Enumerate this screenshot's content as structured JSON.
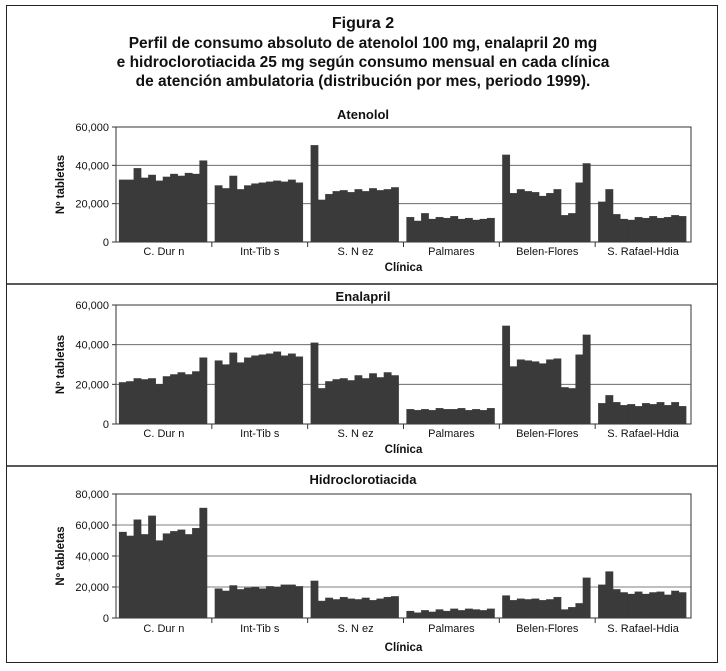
{
  "figure": {
    "label": "Figura 2",
    "title_lines": [
      "Perfil de consumo absoluto de atenolol 100 mg, enalapril 20 mg",
      "e hidroclorotiacida 25 mg según consumo mensual en cada clínica",
      "de atención ambulatoria (distribución por mes, periodo 1999)."
    ]
  },
  "chart_data": [
    {
      "type": "bar",
      "title": "Atenolol",
      "xlabel": "Clínica",
      "ylabel": "Nº tabletas",
      "ylim": [
        0,
        60000
      ],
      "yticks": [
        "0",
        "20,000",
        "40,000",
        "60,000"
      ],
      "grid": true,
      "bar_color": "#3a3a3a",
      "categories": [
        "C. Dur n",
        "Int-Tib s",
        "S. N ez",
        "Palmares",
        "Belen-Flores",
        "S. Rafael-Hdia"
      ],
      "monthly_values": [
        [
          32500,
          32500,
          38500,
          33500,
          35000,
          32000,
          34000,
          35500,
          34500,
          36000,
          35500,
          42500
        ],
        [
          29500,
          28000,
          34500,
          27500,
          29500,
          30500,
          31000,
          31500,
          32000,
          31500,
          32500,
          31000
        ],
        [
          50500,
          22000,
          25000,
          26500,
          27000,
          26000,
          27500,
          26500,
          28000,
          27000,
          27500,
          28500
        ],
        [
          13000,
          11000,
          15000,
          12000,
          13000,
          12500,
          13500,
          12000,
          12500,
          11500,
          12000,
          12500
        ],
        [
          45500,
          25500,
          27500,
          26500,
          26000,
          24000,
          25500,
          27500,
          14000,
          15000,
          31000,
          41000
        ],
        [
          21000,
          27500,
          14500,
          12000,
          11500,
          13000,
          12500,
          13500,
          12500,
          13000,
          14000,
          13500
        ]
      ]
    },
    {
      "type": "bar",
      "title": "Enalapril",
      "xlabel": "Clínica",
      "ylabel": "Nº tabletas",
      "ylim": [
        0,
        60000
      ],
      "yticks": [
        "0",
        "20,000",
        "40,000",
        "60,000"
      ],
      "grid": true,
      "bar_color": "#3a3a3a",
      "categories": [
        "C. Dur n",
        "Int-Tib s",
        "S. N ez",
        "Palmares",
        "Belen-Flores",
        "S. Rafael-Hdia"
      ],
      "monthly_values": [
        [
          21000,
          21500,
          23000,
          22500,
          23000,
          20000,
          24000,
          25000,
          26000,
          25000,
          26500,
          33500
        ],
        [
          32000,
          30000,
          36000,
          31000,
          33500,
          34500,
          35000,
          35500,
          36500,
          34500,
          35500,
          34000
        ],
        [
          41000,
          18000,
          21500,
          22500,
          23000,
          22000,
          24500,
          23000,
          25500,
          23500,
          26000,
          24500
        ],
        [
          7500,
          7000,
          7500,
          7000,
          8000,
          7500,
          7500,
          8000,
          7000,
          7500,
          7000,
          8000
        ],
        [
          49500,
          29000,
          32500,
          32000,
          31500,
          30500,
          32500,
          33000,
          18500,
          18000,
          35000,
          45000
        ],
        [
          10500,
          14500,
          11000,
          9500,
          10000,
          9000,
          10500,
          10000,
          11000,
          9500,
          11000,
          9000
        ]
      ]
    },
    {
      "type": "bar",
      "title": "Hidroclorotiacida",
      "xlabel": "Clínica",
      "ylabel": "Nº tabletas",
      "ylim": [
        0,
        80000
      ],
      "yticks": [
        "0",
        "20,000",
        "40,000",
        "60,000",
        "80,000"
      ],
      "grid": true,
      "bar_color": "#3a3a3a",
      "categories": [
        "C. Dur n",
        "Int-Tib s",
        "S. N ez",
        "Palmares",
        "Belen-Flores",
        "S. Rafael-Hdia"
      ],
      "monthly_values": [
        [
          55500,
          53000,
          63500,
          54000,
          66000,
          50000,
          54500,
          56000,
          57000,
          54000,
          58000,
          71000
        ],
        [
          19000,
          17500,
          21000,
          18500,
          19500,
          20000,
          19000,
          20500,
          20000,
          21500,
          21500,
          20500
        ],
        [
          24000,
          11000,
          13000,
          12000,
          13500,
          12500,
          12000,
          13000,
          11500,
          12500,
          13500,
          14000
        ],
        [
          4500,
          3500,
          5000,
          4000,
          5500,
          4500,
          6000,
          5000,
          6000,
          5500,
          5000,
          6000
        ],
        [
          14500,
          11500,
          12500,
          12000,
          12500,
          11500,
          12000,
          13500,
          5500,
          7000,
          9500,
          26000
        ],
        [
          21500,
          30000,
          18500,
          16500,
          15500,
          17000,
          15500,
          16500,
          17000,
          15000,
          17500,
          16500
        ]
      ]
    }
  ]
}
